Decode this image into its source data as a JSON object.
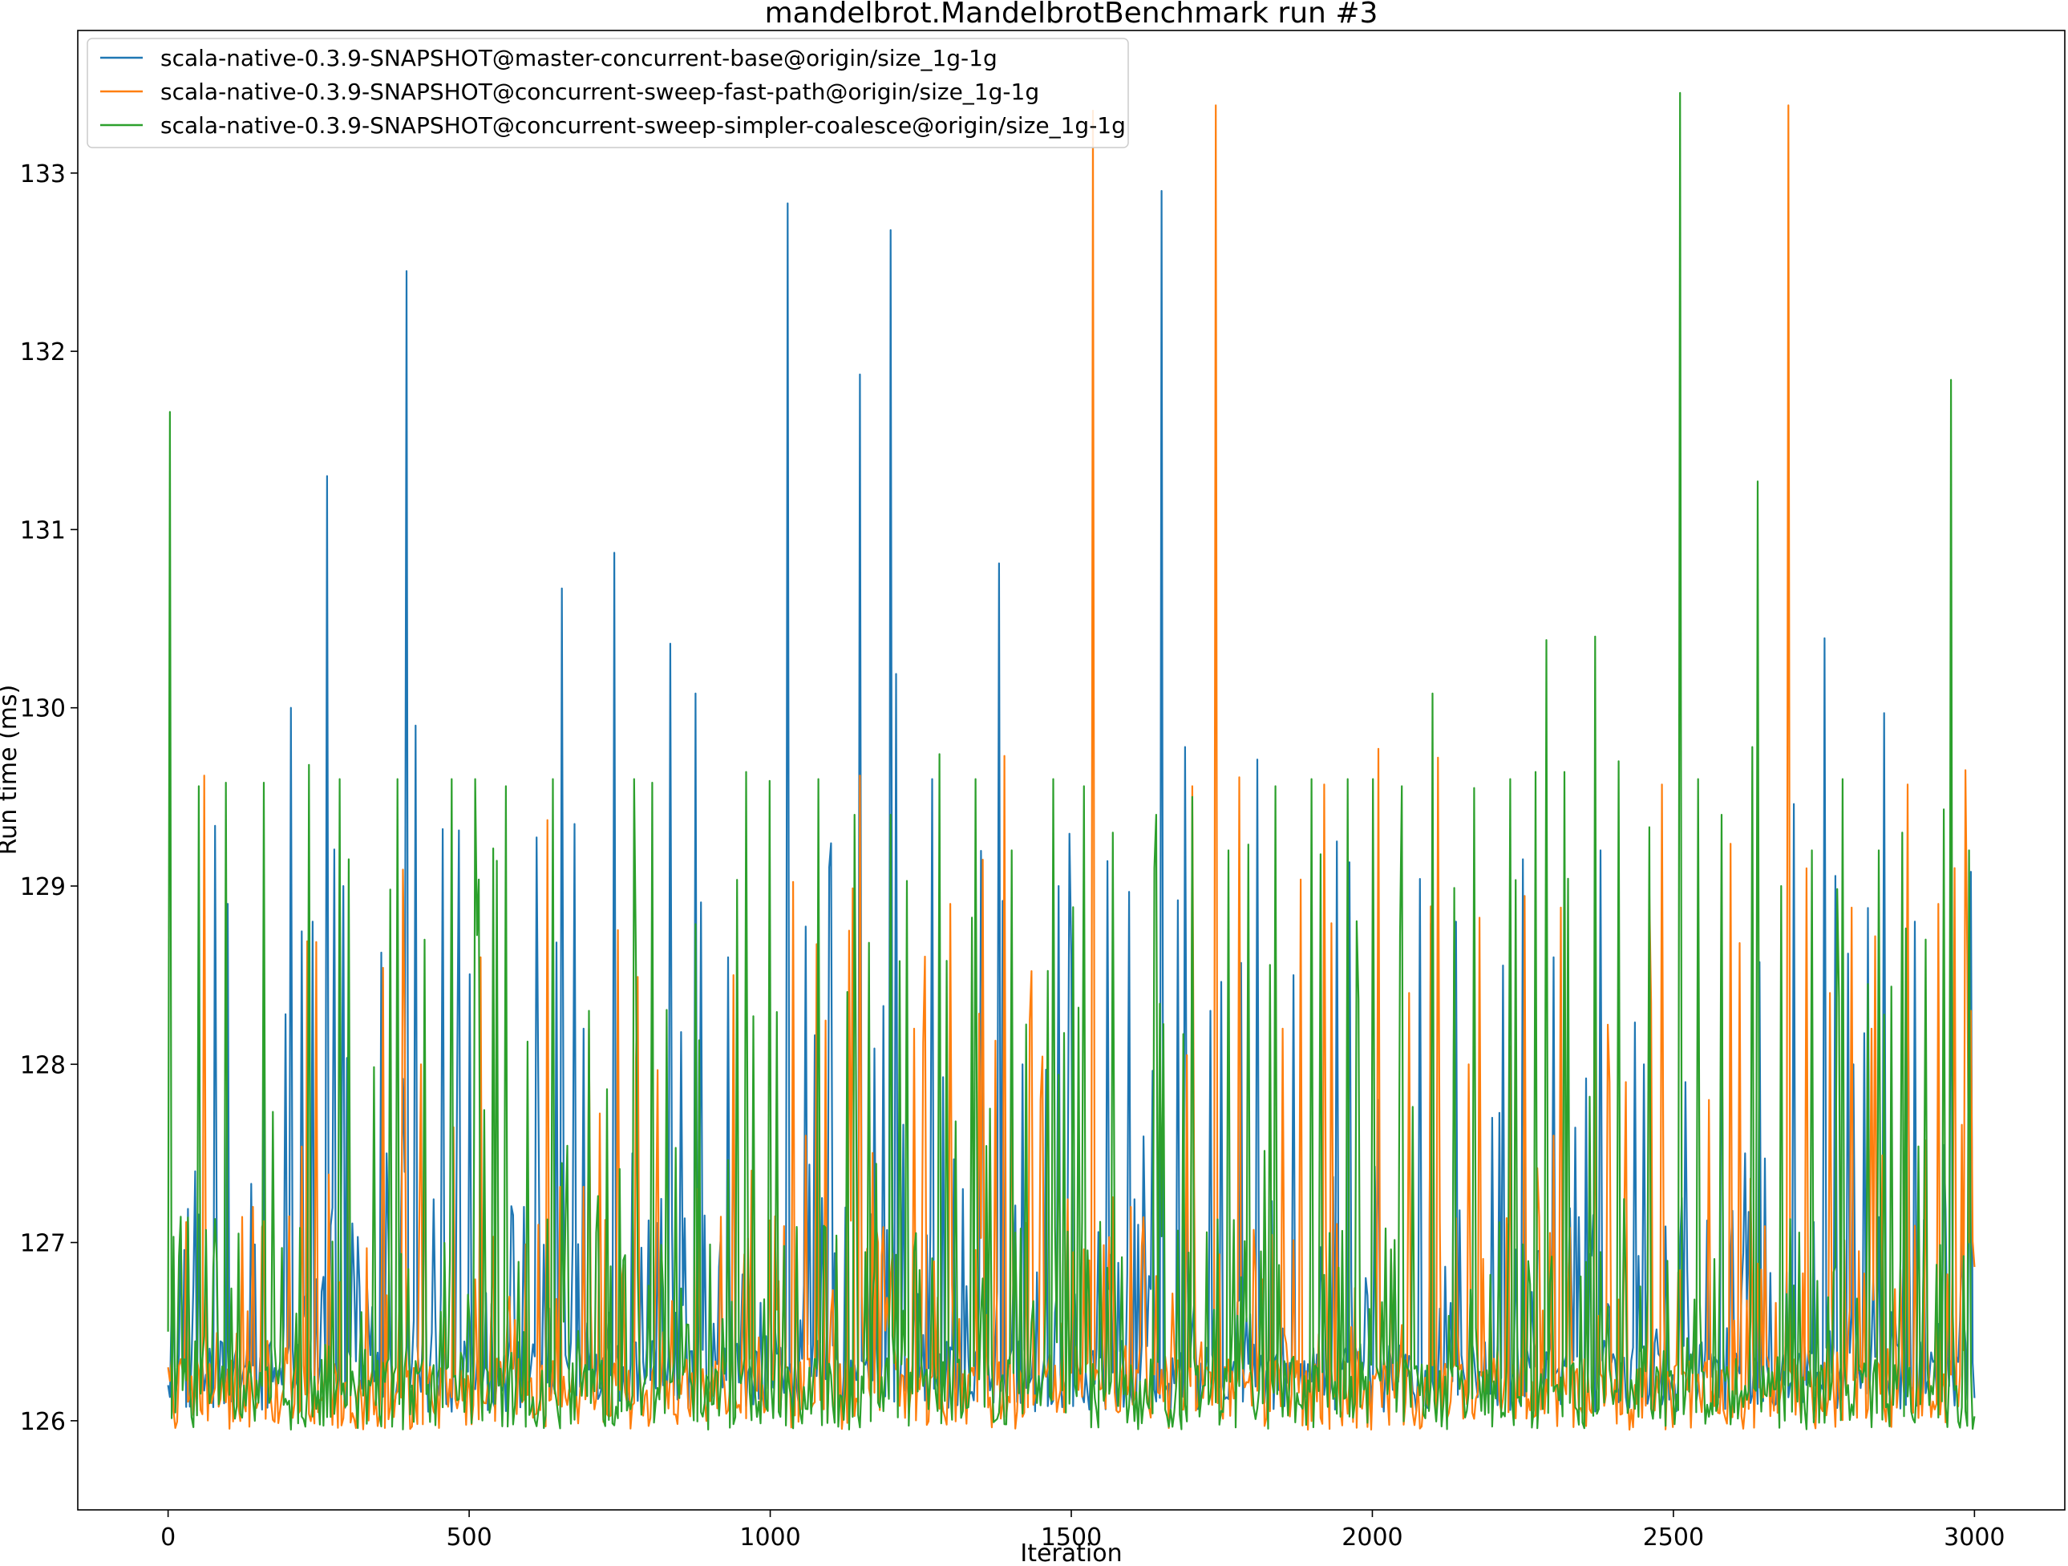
{
  "chart_data": {
    "type": "line",
    "title": "mandelbrot.MandelbrotBenchmark run #3",
    "xlabel": "Iteration",
    "ylabel": "Run time (ms)",
    "xlim": [
      -150,
      3150
    ],
    "ylim": [
      125.5,
      133.8
    ],
    "xticks": [
      0,
      500,
      1000,
      1500,
      2000,
      2500,
      3000
    ],
    "yticks": [
      126,
      127,
      128,
      129,
      130,
      131,
      132,
      133
    ],
    "grid": false,
    "legend_position": "top-left",
    "colors": {
      "blue": "#1f77b4",
      "orange": "#ff7f0e",
      "green": "#2ca02c"
    },
    "series": [
      {
        "name": "scala-native-0.3.9-SNAPSHOT@master-concurrent-base@origin/size_1g-1g",
        "color": "#1f77b4",
        "baseline": 126.15,
        "x": [
          0,
          20,
          45,
          100,
          160,
          205,
          240,
          265,
          290,
          330,
          395,
          410,
          460,
          480,
          520,
          590,
          655,
          690,
          740,
          770,
          835,
          875,
          930,
          1000,
          1030,
          1100,
          1150,
          1200,
          1210,
          1270,
          1320,
          1380,
          1420,
          1480,
          1560,
          1610,
          1650,
          1690,
          1730,
          1810,
          1870,
          1940,
          2010,
          2080,
          2140,
          2200,
          2250,
          2300,
          2380,
          2450,
          2520,
          2580,
          2620,
          2700,
          2750,
          2800,
          2850,
          2900,
          2960,
          2995
        ],
        "values": [
          126.2,
          127.1,
          127.4,
          128.9,
          128.0,
          130.0,
          128.8,
          131.3,
          129.0,
          126.8,
          132.45,
          129.9,
          126.5,
          127.9,
          128.1,
          127.2,
          130.67,
          128.2,
          130.87,
          127.5,
          130.36,
          130.08,
          128.6,
          127.0,
          132.83,
          129.24,
          131.87,
          132.68,
          130.19,
          129.6,
          127.3,
          130.81,
          128.0,
          129.0,
          129.14,
          127.1,
          132.9,
          129.78,
          128.3,
          129.71,
          128.5,
          129.25,
          127.8,
          129.04,
          128.8,
          127.7,
          129.15,
          128.6,
          129.2,
          128.0,
          127.9,
          128.89,
          127.5,
          129.46,
          130.39,
          128.0,
          129.97,
          128.8,
          129.6,
          129.08
        ]
      },
      {
        "name": "scala-native-0.3.9-SNAPSHOT@concurrent-sweep-fast-path@origin/size_1g-1g",
        "color": "#ff7f0e",
        "baseline": 126.05,
        "x": [
          0,
          60,
          140,
          230,
          300,
          420,
          520,
          630,
          700,
          780,
          880,
          940,
          1060,
          1130,
          1150,
          1240,
          1300,
          1390,
          1450,
          1530,
          1535,
          1600,
          1700,
          1740,
          1780,
          1850,
          1920,
          2010,
          2060,
          2110,
          2160,
          2230,
          2300,
          2370,
          2420,
          2480,
          2560,
          2610,
          2690,
          2720,
          2760,
          2830,
          2890,
          2940,
          2985
        ],
        "values": [
          126.3,
          129.62,
          127.2,
          128.69,
          128.57,
          128.0,
          128.6,
          129.37,
          128.2,
          128.49,
          127.3,
          128.5,
          127.6,
          128.75,
          129.62,
          128.2,
          128.9,
          129.73,
          127.8,
          126.9,
          133.35,
          127.2,
          129.56,
          133.38,
          129.61,
          128.2,
          129.57,
          129.77,
          128.4,
          129.72,
          128.0,
          128.1,
          127.6,
          128.3,
          127.9,
          129.57,
          127.8,
          128.68,
          133.38,
          129.1,
          128.4,
          128.2,
          129.57,
          128.9,
          129.65
        ]
      },
      {
        "name": "scala-native-0.3.9-SNAPSHOT@concurrent-sweep-simpler-coalesce@origin/size_1g-1g",
        "color": "#2ca02c",
        "baseline": 126.05,
        "x": [
          0,
          3,
          50,
          95,
          160,
          235,
          285,
          300,
          370,
          380,
          470,
          510,
          560,
          640,
          700,
          775,
          805,
          960,
          1000,
          1080,
          1140,
          1200,
          1280,
          1340,
          1400,
          1470,
          1520,
          1570,
          1640,
          1700,
          1760,
          1840,
          1900,
          1960,
          2000,
          2050,
          2100,
          2170,
          2230,
          2270,
          2290,
          2320,
          2370,
          2410,
          2460,
          2510,
          2540,
          2580,
          2630,
          2640,
          2680,
          2730,
          2780,
          2840,
          2880,
          2920,
          2950,
          2960,
          2990
        ],
        "values": [
          126.5,
          131.66,
          129.56,
          129.58,
          129.58,
          129.68,
          129.6,
          129.15,
          128.98,
          129.6,
          129.6,
          129.6,
          129.56,
          129.6,
          128.3,
          129.6,
          129.58,
          129.64,
          129.59,
          129.6,
          129.4,
          129.4,
          129.74,
          129.6,
          129.2,
          129.6,
          129.56,
          129.3,
          129.4,
          129.5,
          129.2,
          129.56,
          129.6,
          129.6,
          129.6,
          129.56,
          130.08,
          129.55,
          129.6,
          129.64,
          130.38,
          129.64,
          130.4,
          129.7,
          129.33,
          133.45,
          129.6,
          129.4,
          129.78,
          131.27,
          129.0,
          129.2,
          129.6,
          129.2,
          129.3,
          128.7,
          129.43,
          131.84,
          129.2
        ]
      }
    ]
  }
}
